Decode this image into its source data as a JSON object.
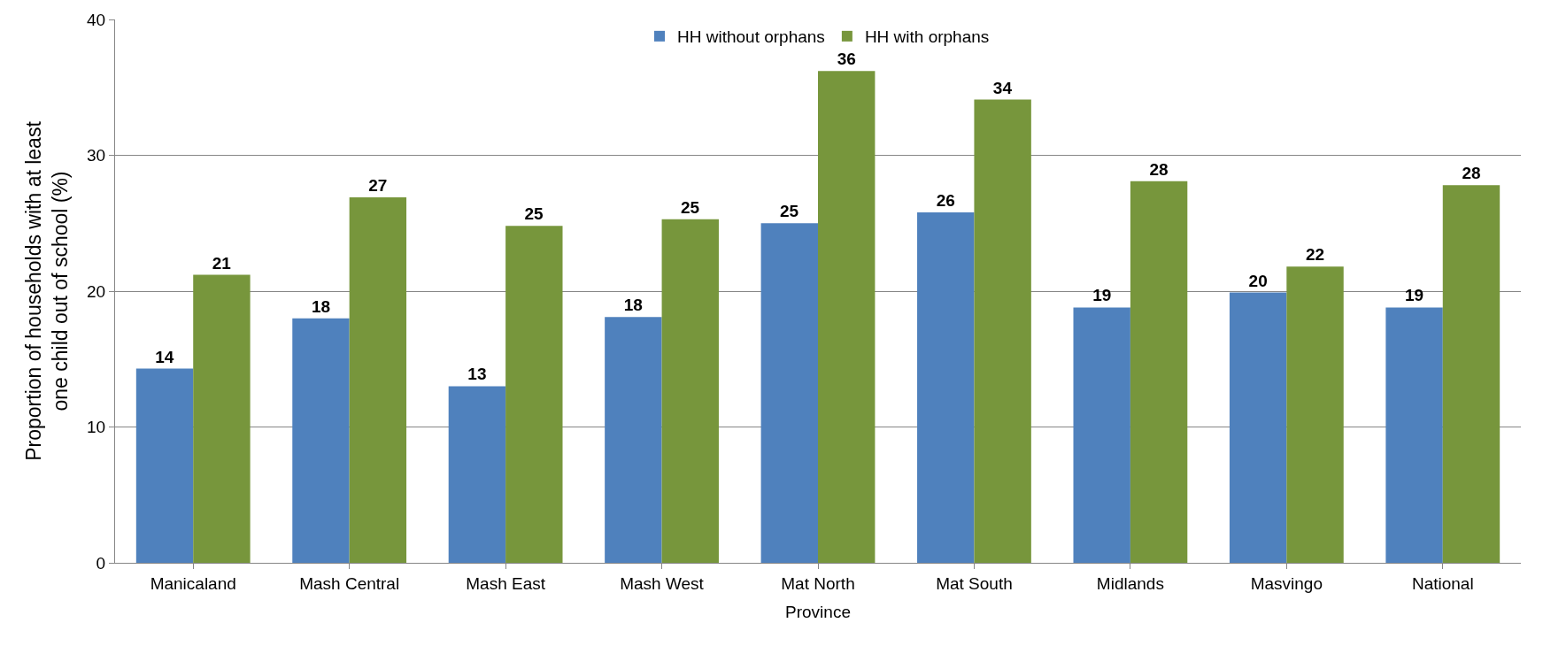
{
  "chart_data": {
    "type": "bar",
    "xlabel": "Province",
    "ylabel": "Proportion of households with at least one child out of school (%)",
    "categories": [
      "Manicaland",
      "Mash Central",
      "Mash East",
      "Mash West",
      "Mat North",
      "Mat South",
      "Midlands",
      "Masvingo",
      "National"
    ],
    "series": [
      {
        "name": "HH without orphans",
        "color": "#4f81bd",
        "values": [
          14.3,
          18.0,
          13.0,
          18.1,
          25.0,
          25.8,
          18.8,
          19.9,
          18.8
        ],
        "value_labels": [
          "14",
          "18",
          "13",
          "18",
          "25",
          "26",
          "19",
          "20",
          "19"
        ]
      },
      {
        "name": "HH with orphans",
        "color": "#77963c",
        "values": [
          21.2,
          26.9,
          24.8,
          25.3,
          36.2,
          34.1,
          28.1,
          21.8,
          27.8
        ],
        "value_labels": [
          "21",
          "27",
          "25",
          "25",
          "36",
          "34",
          "28",
          "22",
          "28"
        ]
      }
    ],
    "ylim": [
      0,
      40
    ],
    "yticks": [
      0,
      10,
      20,
      30,
      40
    ],
    "grid": "y",
    "legend": "top"
  }
}
